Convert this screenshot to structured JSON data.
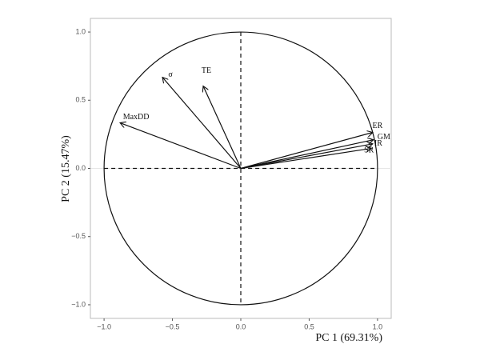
{
  "chart_data": {
    "type": "biplot",
    "x_label": "PC 1 (69.31%)",
    "y_label": "PC 2 (15.47%)",
    "categories": [
      "ER",
      "GM",
      "IR",
      "SR",
      "MaxDD",
      "σ",
      "TE"
    ],
    "x": [
      0.965,
      0.97,
      0.965,
      0.955,
      -0.883,
      -0.573,
      -0.275
    ],
    "values": [
      0.264,
      0.21,
      0.18,
      0.147,
      0.334,
      0.668,
      0.604
    ],
    "color": "#111111",
    "xlim": [
      -1.1,
      1.1
    ],
    "ylim": [
      -1.1,
      1.1
    ],
    "xticks": [
      {
        "value": -1,
        "label": "−1.0"
      },
      {
        "value": -0.5,
        "label": "−0.5"
      },
      {
        "value": 0,
        "label": "0.0"
      },
      {
        "value": 0.5,
        "label": "0.5"
      },
      {
        "value": 1,
        "label": "1.0"
      }
    ],
    "yticks": [
      {
        "value": -1,
        "label": "−1.0"
      },
      {
        "value": -0.5,
        "label": "−0.5"
      },
      {
        "value": 0,
        "label": "0.0"
      },
      {
        "value": 0.5,
        "label": "0.5"
      },
      {
        "value": 1,
        "label": "1.0"
      }
    ]
  }
}
